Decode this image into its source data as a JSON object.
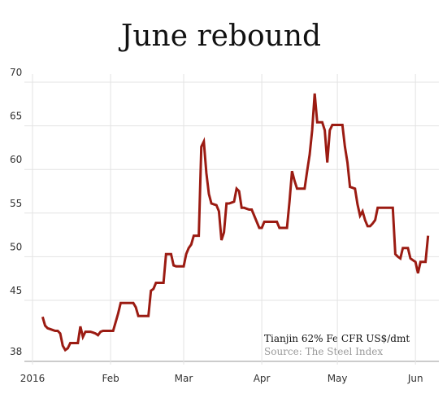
{
  "chart_data": {
    "type": "line",
    "title": "June rebound",
    "annotation": "Tianjin 62% Fe CFR US$/dmt",
    "source": "Source: The Steel Index",
    "categories": [
      "2016",
      null,
      null,
      null,
      null,
      null,
      null,
      null,
      null,
      null,
      null,
      null,
      null,
      null,
      null,
      null,
      null,
      null,
      null,
      null,
      null,
      null,
      null,
      null,
      null,
      null,
      null,
      null,
      null,
      null,
      null,
      "Feb",
      null,
      null,
      null,
      null,
      null,
      null,
      null,
      null,
      null,
      null,
      null,
      null,
      null,
      null,
      null,
      null,
      null,
      null,
      null,
      null,
      null,
      null,
      null,
      null,
      null,
      null,
      null,
      null,
      "Mar",
      null,
      null,
      null,
      null,
      null,
      null,
      null,
      null,
      null,
      null,
      null,
      null,
      null,
      null,
      null,
      null,
      null,
      null,
      null,
      null,
      null,
      null,
      null,
      null,
      null,
      null,
      null,
      null,
      null,
      null,
      "Apr",
      null,
      null,
      null,
      null,
      null,
      null,
      null,
      null,
      null,
      null,
      null,
      null,
      null,
      null,
      null,
      null,
      null,
      null,
      null,
      null,
      null,
      null,
      null,
      null,
      null,
      null,
      null,
      null,
      null,
      "May",
      null,
      null,
      null,
      null,
      null,
      null,
      null,
      null,
      null,
      null,
      null,
      null,
      null,
      null,
      null,
      null,
      null,
      null,
      null,
      null,
      null,
      null,
      null,
      null,
      null,
      null,
      null,
      null,
      null,
      null,
      "Jun",
      null,
      null,
      null,
      null,
      null
    ],
    "values": [
      null,
      null,
      null,
      null,
      43.1,
      42.1,
      41.8,
      41.7,
      41.6,
      41.5,
      41.5,
      41.2,
      39.8,
      39.3,
      39.5,
      40.1,
      40.1,
      40.1,
      40.1,
      42.0,
      40.8,
      41.4,
      41.4,
      41.4,
      41.3,
      41.2,
      41.0,
      41.4,
      41.5,
      41.5,
      41.5,
      41.5,
      41.5,
      42.5,
      43.5,
      44.7,
      44.7,
      44.7,
      44.7,
      44.7,
      44.7,
      44.2,
      43.2,
      43.2,
      43.2,
      43.2,
      43.2,
      46.1,
      46.3,
      47.0,
      47.0,
      47.0,
      47.0,
      50.3,
      50.3,
      50.3,
      49.0,
      48.9,
      48.9,
      48.9,
      48.9,
      50.3,
      51.0,
      51.4,
      52.4,
      52.4,
      52.4,
      62.6,
      63.2,
      59.6,
      57.2,
      56.1,
      56.0,
      55.9,
      55.2,
      51.9,
      52.8,
      56.1,
      56.1,
      56.2,
      56.3,
      57.8,
      57.5,
      55.6,
      55.6,
      55.5,
      55.4,
      55.4,
      54.7,
      54.0,
      53.3,
      53.3,
      54.0,
      54.0,
      54.0,
      54.0,
      54.0,
      54.0,
      53.3,
      53.3,
      53.3,
      53.3,
      56.3,
      59.8,
      58.7,
      57.8,
      57.8,
      57.8,
      57.8,
      59.8,
      61.7,
      64.5,
      68.7,
      65.4,
      65.4,
      65.4,
      64.5,
      60.8,
      64.5,
      65.1,
      65.1,
      65.1,
      65.1,
      65.1,
      62.6,
      60.8,
      58.0,
      57.9,
      57.8,
      56.0,
      54.7,
      55.2,
      54.2,
      53.5,
      53.5,
      53.8,
      54.2,
      55.6,
      55.6,
      55.6,
      55.6,
      55.6,
      55.6,
      55.6,
      50.3,
      50.0,
      49.8,
      51.0,
      51.0,
      51.0,
      49.8,
      49.6,
      49.4,
      48.1,
      49.4,
      49.4,
      49.4,
      52.4
    ],
    "color": "#9b1b12",
    "ylim": [
      38,
      70
    ],
    "yticks": [
      38,
      45,
      50,
      55,
      60,
      65,
      70
    ],
    "grid": true
  }
}
